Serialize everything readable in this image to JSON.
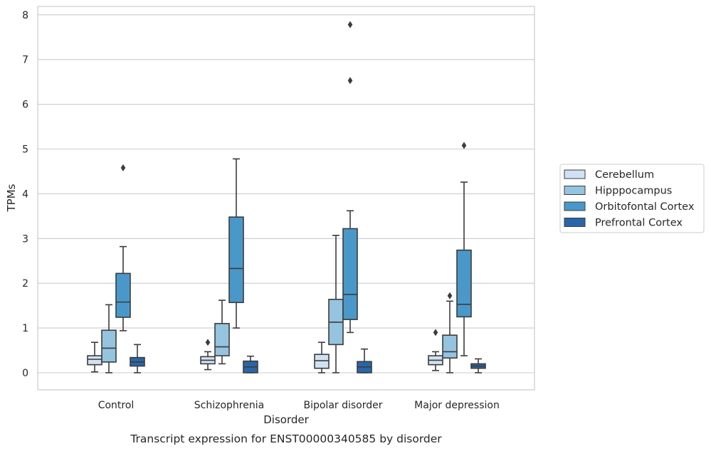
{
  "chart_data": {
    "type": "boxplot",
    "title": "",
    "caption": "Transcript expression for ENST00000340585 by disorder",
    "xlabel": "Disorder",
    "ylabel": "TPMs",
    "ylim": [
      -0.38,
      8.16
    ],
    "yticks": [
      0,
      1,
      2,
      3,
      4,
      5,
      6,
      7,
      8
    ],
    "grid": "horizontal",
    "legend_position": "right",
    "categories": [
      "Control",
      "Schizophrenia",
      "Bipolar disorder",
      "Major depression"
    ],
    "series": [
      {
        "name": "Cerebellum",
        "color": "#d0e1f2",
        "boxes": [
          {
            "whisker_low": 0.02,
            "q1": 0.18,
            "median": 0.3,
            "q3": 0.38,
            "whisker_high": 0.68,
            "outliers": []
          },
          {
            "whisker_low": 0.07,
            "q1": 0.2,
            "median": 0.28,
            "q3": 0.36,
            "whisker_high": 0.47,
            "outliers": [
              0.68
            ]
          },
          {
            "whisker_low": 0.0,
            "q1": 0.1,
            "median": 0.27,
            "q3": 0.41,
            "whisker_high": 0.68,
            "outliers": []
          },
          {
            "whisker_low": 0.05,
            "q1": 0.18,
            "median": 0.28,
            "q3": 0.38,
            "whisker_high": 0.47,
            "outliers": [
              0.9
            ]
          }
        ]
      },
      {
        "name": "Hipppocampus",
        "color": "#94c4df",
        "boxes": [
          {
            "whisker_low": 0.0,
            "q1": 0.24,
            "median": 0.55,
            "q3": 0.95,
            "whisker_high": 1.52,
            "outliers": []
          },
          {
            "whisker_low": 0.2,
            "q1": 0.38,
            "median": 0.58,
            "q3": 1.1,
            "whisker_high": 1.62,
            "outliers": []
          },
          {
            "whisker_low": 0.0,
            "q1": 0.63,
            "median": 1.13,
            "q3": 1.64,
            "whisker_high": 3.07,
            "outliers": []
          },
          {
            "whisker_low": 0.0,
            "q1": 0.33,
            "median": 0.47,
            "q3": 0.84,
            "whisker_high": 1.6,
            "outliers": [
              1.72
            ]
          }
        ]
      },
      {
        "name": "Orbitofontal Cortex",
        "color": "#4a98c9",
        "boxes": [
          {
            "whisker_low": 0.94,
            "q1": 1.24,
            "median": 1.58,
            "q3": 2.22,
            "whisker_high": 2.82,
            "outliers": [
              4.58
            ]
          },
          {
            "whisker_low": 1.0,
            "q1": 1.57,
            "median": 2.33,
            "q3": 3.48,
            "whisker_high": 4.78,
            "outliers": []
          },
          {
            "whisker_low": 0.9,
            "q1": 1.19,
            "median": 1.75,
            "q3": 3.22,
            "whisker_high": 3.62,
            "outliers": [
              6.53,
              7.78
            ]
          },
          {
            "whisker_low": 0.38,
            "q1": 1.25,
            "median": 1.53,
            "q3": 2.74,
            "whisker_high": 4.26,
            "outliers": [
              5.08
            ]
          }
        ]
      },
      {
        "name": "Prefrontal Cortex",
        "color": "#2966a8",
        "boxes": [
          {
            "whisker_low": 0.0,
            "q1": 0.15,
            "median": 0.24,
            "q3": 0.34,
            "whisker_high": 0.63,
            "outliers": []
          },
          {
            "whisker_low": 0.0,
            "q1": 0.0,
            "median": 0.13,
            "q3": 0.26,
            "whisker_high": 0.37,
            "outliers": []
          },
          {
            "whisker_low": 0.0,
            "q1": 0.0,
            "median": 0.13,
            "q3": 0.25,
            "whisker_high": 0.53,
            "outliers": []
          },
          {
            "whisker_low": 0.0,
            "q1": 0.1,
            "median": 0.15,
            "q3": 0.2,
            "whisker_high": 0.31,
            "outliers": []
          }
        ]
      }
    ]
  }
}
